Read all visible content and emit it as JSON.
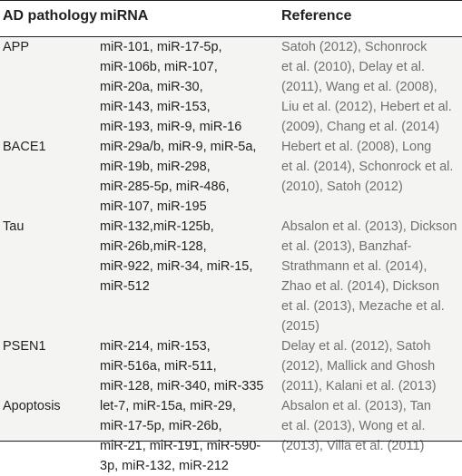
{
  "table": {
    "headers": {
      "pathology": "AD pathology",
      "mirna": "miRNA",
      "reference": "Reference"
    },
    "rows": [
      {
        "pathology": "APP",
        "mirna": "miR-101, miR-17-5p,\nmiR-106b, miR-107,\nmiR-20a, miR-30,\nmiR-143, miR-153,\nmiR-193, miR-9, miR-16",
        "reference": "Satoh (2012), Schonrock\net al. (2010), Delay et al.\n(2011), Wang et al. (2008),\nLiu et al. (2012), Hebert et al.\n(2009), Chang et al. (2014)"
      },
      {
        "pathology": "BACE1",
        "mirna": "miR-29a/b, miR-9, miR-5a,\nmiR-19b, miR-298,\nmiR-285-5p, miR-486,\nmiR-107, miR-195",
        "reference": "Hebert et al. (2008), Long\net al. (2014), Schonrock et al.\n(2010), Satoh (2012)"
      },
      {
        "pathology": "Tau",
        "mirna": "miR-132,miR-125b,\nmiR-26b,miR-128,\nmiR-922, miR-34, miR-15,\nmiR-512",
        "reference": "Absalon et al. (2013), Dickson\net al. (2013), Banzhaf-\nStrathmann et al. (2014),\nZhao et al. (2014), Dickson\net al. (2013), Mezache et al.\n(2015)"
      },
      {
        "pathology": "PSEN1",
        "mirna": "miR-214, miR-153,\nmiR-516a, miR-511,\nmiR-128, miR-340, miR-335",
        "reference": "Delay et al. (2012), Satoh\n(2012), Mallick and Ghosh\n(2011), Kalani et al. (2013)"
      },
      {
        "pathology": "Apoptosis",
        "mirna": "let-7, miR-15a, miR-29,\nmiR-17-5p, miR-26b,\nmiR-21, miR-191, miR-590-\n3p, miR-132, miR-212",
        "reference": "Absalon et al. (2013), Tan\net al. (2013), Wong et al.\n(2013), Villa et al. (2011)"
      }
    ]
  }
}
